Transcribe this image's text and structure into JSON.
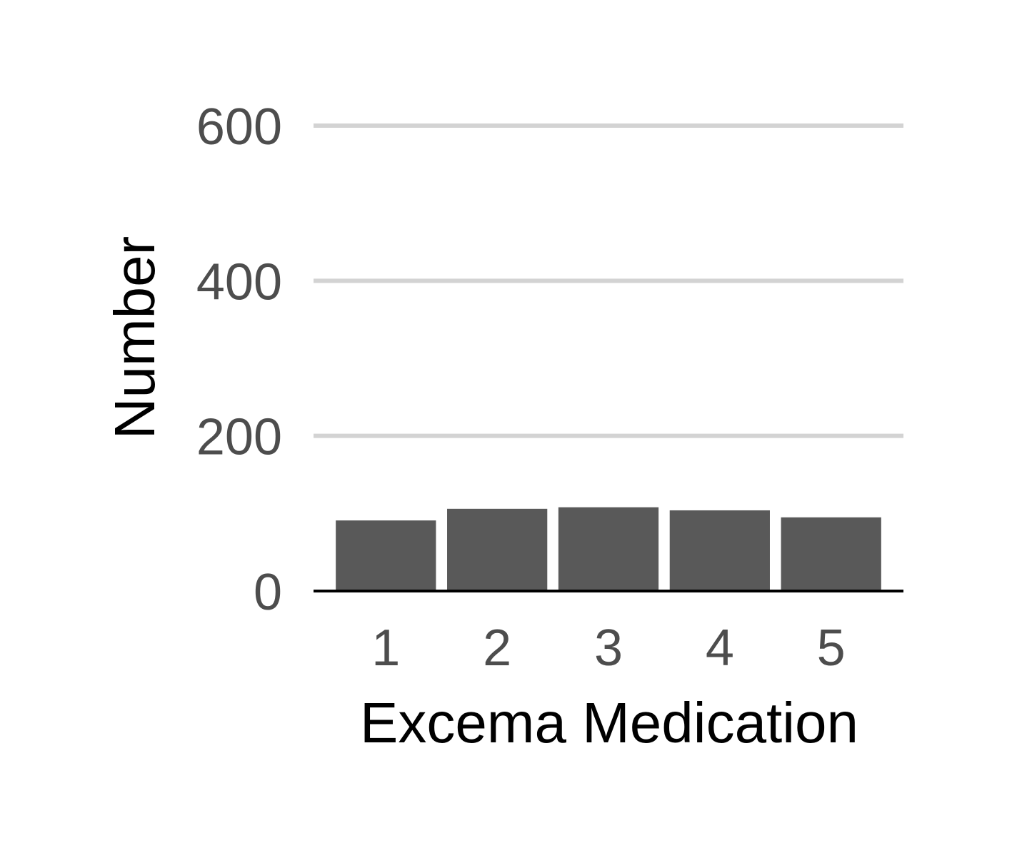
{
  "chart_data": {
    "type": "bar",
    "title": "",
    "xlabel": "Excema Medication",
    "ylabel": "Number",
    "categories": [
      "1",
      "2",
      "3",
      "4",
      "5"
    ],
    "values": [
      91,
      106,
      108,
      104,
      95
    ],
    "ylim": [
      0,
      600
    ],
    "yticks": [
      0,
      200,
      400,
      600
    ],
    "grid": "horizontal",
    "legend": "none"
  },
  "colors": {
    "bar": "#595959",
    "grid": "#d3d3d3",
    "axis_line": "#000000",
    "tick_text": "#4d4d4d",
    "title_text": "#000000",
    "background": "#ffffff"
  }
}
